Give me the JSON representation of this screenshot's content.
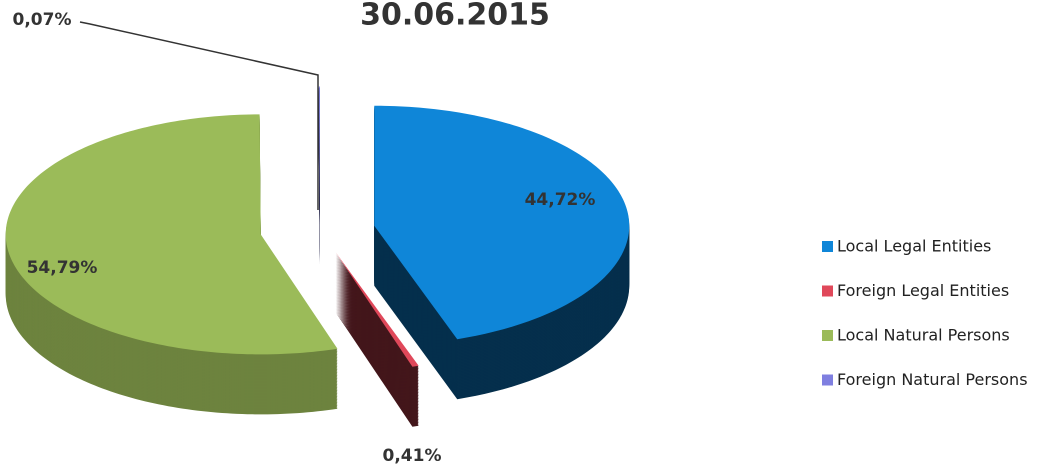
{
  "chart_data": {
    "type": "pie3d",
    "title": "30.06.2015",
    "categories": [
      "Local Legal Entities",
      "Foreign Legal Entities",
      "Local Natural Persons",
      "Foreign Natural Persons"
    ],
    "values": [
      44.72,
      0.41,
      54.79,
      0.07
    ],
    "value_labels": [
      "44,72%",
      "0,41%",
      "54,79%",
      "0,07%"
    ],
    "colors": [
      "#0f86d8",
      "#e0485a",
      "#9bbb59",
      "#7f7fe0"
    ],
    "legend": "right"
  }
}
